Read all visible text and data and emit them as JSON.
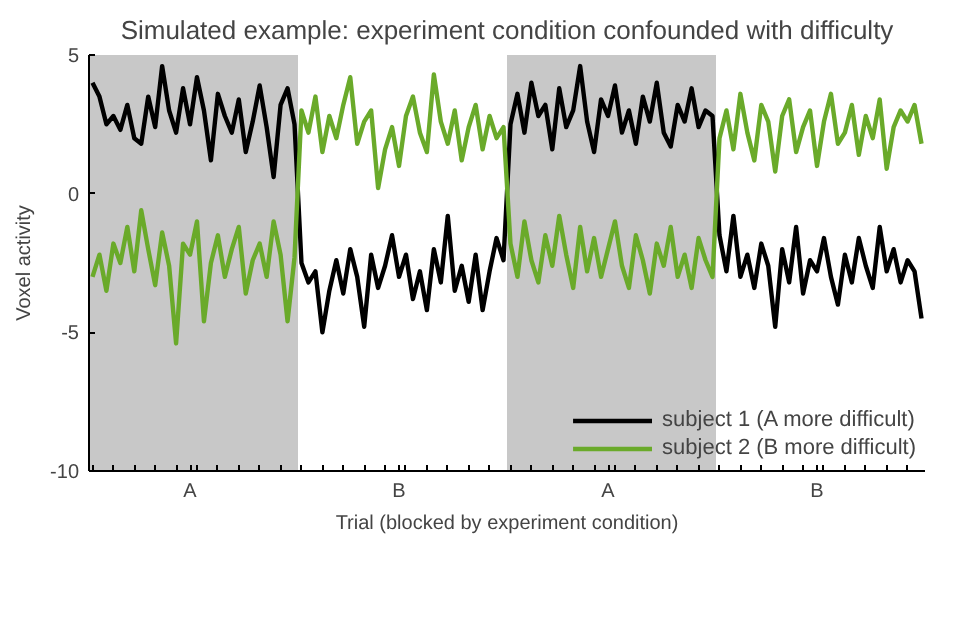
{
  "chart_data": {
    "type": "line",
    "title": "Simulated example: experiment condition confounded with difficulty",
    "xlabel": "Trial (blocked by experiment condition)",
    "ylabel": "Voxel activity",
    "categories": [
      null,
      null,
      null,
      null,
      null,
      null,
      null,
      null,
      null,
      null,
      null,
      null,
      null,
      null,
      "A",
      null,
      null,
      null,
      null,
      null,
      null,
      null,
      null,
      null,
      null,
      null,
      null,
      null,
      null,
      null,
      null,
      null,
      null,
      null,
      null,
      null,
      null,
      null,
      null,
      null,
      null,
      null,
      null,
      null,
      "B",
      null,
      null,
      null,
      null,
      null,
      null,
      null,
      null,
      null,
      null,
      null,
      null,
      null,
      null,
      null,
      null,
      null,
      null,
      null,
      null,
      null,
      null,
      null,
      null,
      null,
      null,
      null,
      null,
      null,
      "A",
      null,
      null,
      null,
      null,
      null,
      null,
      null,
      null,
      null,
      null,
      null,
      null,
      null,
      null,
      null,
      null,
      null,
      null,
      null,
      null,
      null,
      null,
      null,
      null,
      null,
      null,
      null,
      null,
      null,
      "B",
      null,
      null,
      null,
      null,
      null,
      null,
      null,
      null,
      null,
      null,
      null,
      null,
      null,
      null,
      null
    ],
    "series": [
      {
        "name": "subject 1 (A more difficult)",
        "color": "#000000",
        "values": [
          4,
          3.5,
          2.5,
          2.8,
          2.3,
          3.2,
          2,
          1.8,
          3.5,
          2.4,
          4.6,
          3,
          2.2,
          3.8,
          2.5,
          4.2,
          3,
          1.2,
          3.6,
          2.8,
          2.2,
          3.4,
          1.5,
          2.6,
          3.9,
          2.4,
          0.6,
          3.2,
          3.8,
          2.5,
          -2.5,
          -3.2,
          -2.8,
          -5,
          -3.5,
          -2.4,
          -3.6,
          -2,
          -3,
          -4.8,
          -2.2,
          -3.4,
          -2.6,
          -1.5,
          -3,
          -2.2,
          -3.8,
          -2.8,
          -4.2,
          -2,
          -3.2,
          -0.8,
          -3.5,
          -2.6,
          -3.9,
          -2.2,
          -4.2,
          -2.8,
          -1.6,
          -2.4,
          2.5,
          3.6,
          2.2,
          4,
          2.8,
          3.2,
          1.6,
          3.8,
          2.4,
          3,
          4.6,
          2.6,
          1.5,
          3.4,
          2.8,
          3.9,
          2.2,
          3,
          1.8,
          3.5,
          2.6,
          4,
          2.2,
          1.7,
          3.2,
          2.6,
          3.8,
          2.4,
          3,
          2.8,
          -1.5,
          -2.8,
          -0.8,
          -3,
          -2.2,
          -3.4,
          -1.8,
          -2.6,
          -4.8,
          -2,
          -3.2,
          -1.2,
          -3.6,
          -2.4,
          -2.8,
          -1.6,
          -3,
          -4,
          -2.2,
          -3.2,
          -1.6,
          -2.6,
          -3.4,
          -1.2,
          -2.8,
          -2,
          -3.2,
          -2.4,
          -2.8,
          -4.5
        ]
      },
      {
        "name": "subject 2 (B more difficult)",
        "color": "#6aaa2a",
        "values": [
          -3,
          -2.2,
          -3.5,
          -1.8,
          -2.5,
          -1.2,
          -2.8,
          -0.6,
          -2,
          -3.3,
          -1.4,
          -2.6,
          -5.4,
          -1.8,
          -2.2,
          -1,
          -4.6,
          -2.5,
          -1.5,
          -3,
          -2,
          -1.2,
          -3.6,
          -2.4,
          -1.8,
          -3,
          -1,
          -2.2,
          -4.6,
          -2.3,
          3,
          2.2,
          3.5,
          1.5,
          2.8,
          2,
          3.2,
          4.2,
          1.8,
          2.6,
          3,
          0.2,
          1.6,
          2.4,
          1,
          2.8,
          3.5,
          2.2,
          1.5,
          4.3,
          2.6,
          1.8,
          3,
          1.2,
          2.4,
          3.2,
          1.6,
          2.8,
          2,
          2.4,
          -1.8,
          -3,
          -1,
          -2.4,
          -3.2,
          -1.5,
          -2.6,
          -0.8,
          -2.2,
          -3.4,
          -1.2,
          -2.8,
          -1.6,
          -3,
          -2,
          -1,
          -2.6,
          -3.4,
          -1.5,
          -2.4,
          -3.6,
          -1.8,
          -2.6,
          -1.2,
          -3,
          -2.2,
          -3.4,
          -1.6,
          -2.4,
          -3,
          2,
          3,
          1.6,
          3.6,
          2.2,
          1.2,
          3.2,
          2.6,
          0.8,
          2.8,
          3.4,
          1.5,
          2.4,
          3,
          1,
          2.6,
          3.6,
          1.8,
          2.2,
          3.2,
          1.4,
          2.8,
          2,
          3.4,
          0.9,
          2.4,
          3,
          2.6,
          3.2,
          1.8
        ]
      }
    ],
    "ylim": [
      -10,
      5
    ],
    "yticks": [
      -10,
      -5,
      0,
      5
    ],
    "legend": "bottom right",
    "grid": false,
    "marker": "none",
    "line_style": "solid"
  }
}
